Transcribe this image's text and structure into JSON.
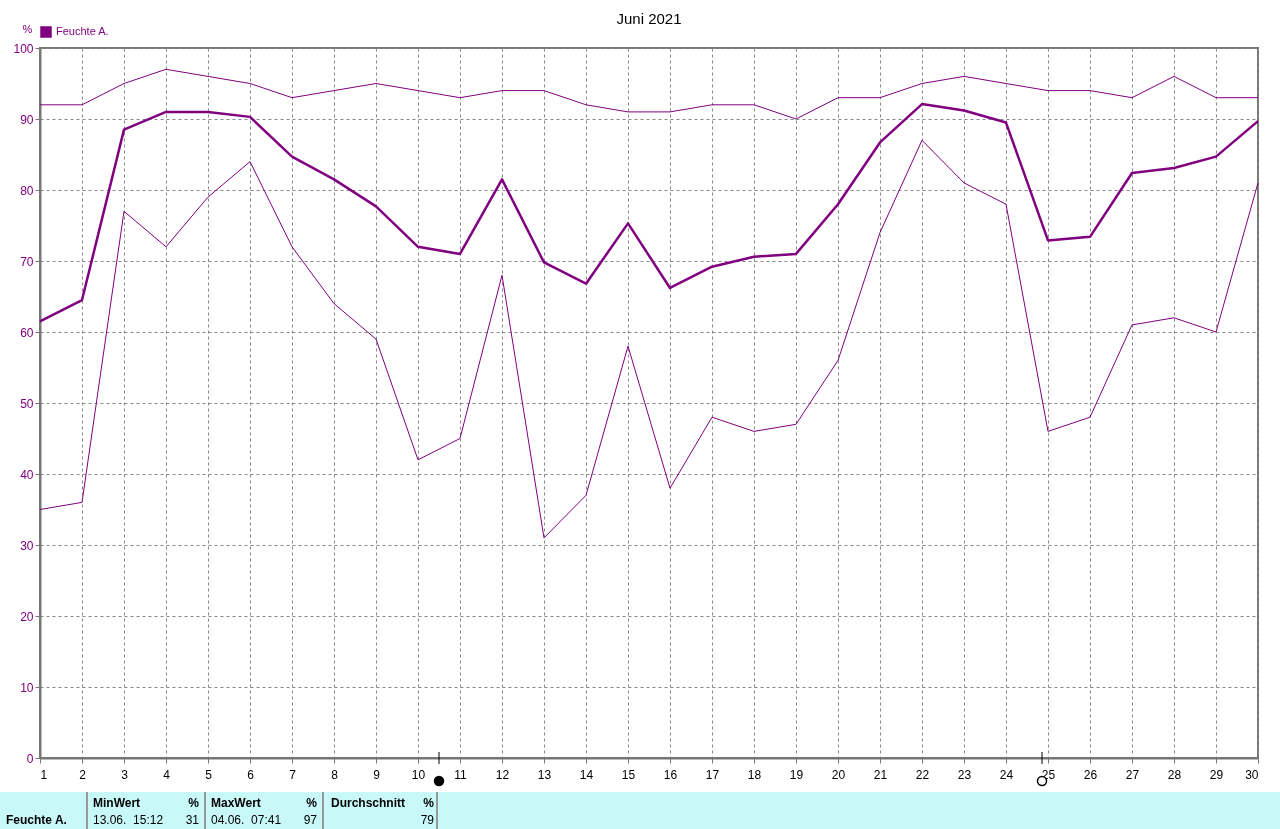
{
  "chart_data": {
    "type": "line",
    "title": "Juni 2021",
    "ylabel": "%",
    "x": [
      1,
      2,
      3,
      4,
      5,
      6,
      7,
      8,
      9,
      10,
      11,
      12,
      13,
      14,
      15,
      16,
      17,
      18,
      19,
      20,
      21,
      22,
      23,
      24,
      25,
      26,
      27,
      28,
      29,
      30
    ],
    "series": [
      {
        "color": "#800080",
        "values": [
          92,
          92,
          95,
          97,
          96,
          95,
          93,
          94,
          95,
          94,
          93,
          94,
          94,
          92,
          91,
          91,
          92,
          92,
          90,
          93,
          93,
          95,
          96,
          95,
          94,
          94,
          93,
          96,
          93,
          93
        ]
      },
      {
        "name": "Feuchte A.",
        "color": "#800080",
        "values": [
          61.5,
          64.5,
          88.5,
          91,
          91,
          90.3,
          84.7,
          81.5,
          77.7,
          72,
          71,
          81.5,
          69.8,
          66.8,
          75.3,
          66.2,
          69.2,
          70.6,
          71,
          78,
          86.7,
          92.1,
          91.2,
          89.5,
          72.9,
          73.4,
          82.4,
          83.1,
          84.7,
          89.7
        ]
      },
      {
        "color": "#800080",
        "values": [
          35,
          36,
          77,
          72,
          79,
          84,
          72,
          64,
          59,
          42,
          45,
          68,
          31,
          37,
          58,
          38,
          48,
          46,
          47,
          56,
          74,
          87,
          81,
          78,
          46,
          48,
          61,
          62,
          60,
          81
        ]
      }
    ],
    "xlim": [
      1,
      30
    ],
    "xticks": [
      1,
      2,
      3,
      4,
      5,
      6,
      7,
      8,
      9,
      10,
      11,
      12,
      13,
      14,
      15,
      16,
      17,
      18,
      19,
      20,
      21,
      22,
      23,
      24,
      25,
      26,
      27,
      28,
      29,
      30
    ],
    "ylim": [
      0,
      100
    ],
    "yticks": [
      0,
      10,
      20,
      30,
      40,
      50,
      60,
      70,
      80,
      90,
      100
    ],
    "grid": true,
    "legend": "top left",
    "marker": "none",
    "line_style": "solid",
    "annotations": [
      "Feuchte A.",
      "MinWert",
      "%",
      "13.06.  15:12",
      "31",
      "MaxWert",
      "%",
      "04.06.  07:41",
      "97",
      "Durchschnitt",
      "%",
      "79"
    ]
  }
}
